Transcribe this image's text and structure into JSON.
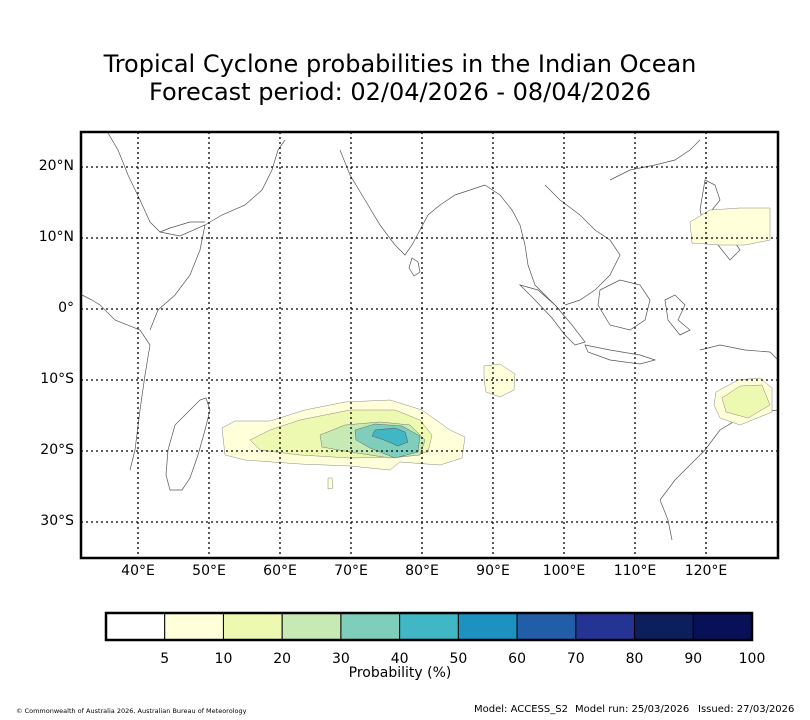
{
  "title": {
    "line1": "Tropical Cyclone probabilities in the Indian Ocean",
    "line2": "Forecast period: 02/04/2026 - 08/04/2026"
  },
  "map": {
    "lat_labels": [
      "20°N",
      "10°N",
      "0°",
      "10°S",
      "20°S",
      "30°S"
    ],
    "lon_labels": [
      "40°E",
      "50°E",
      "60°E",
      "70°E",
      "80°E",
      "90°E",
      "100°E",
      "110°E",
      "120°E"
    ],
    "gridline_style": "dotted"
  },
  "colorbar": {
    "title": "Probability (%)",
    "ticks": [
      "5",
      "10",
      "20",
      "30",
      "40",
      "50",
      "60",
      "70",
      "80",
      "90",
      "100"
    ],
    "colors": [
      "#ffffff",
      "#ffffd9",
      "#edf8b1",
      "#c7e9b4",
      "#7fcdbb",
      "#41b6c4",
      "#1d91c0",
      "#225ea8",
      "#253494",
      "#0c1f5c",
      "#081058"
    ]
  },
  "footer": {
    "copyright": "© Commonwealth of Australia 2026, Australian Bureau of Meteorology",
    "model": "Model: ACCESS_S2",
    "model_run": "Model run: 25/03/2026",
    "issued": "Issued: 27/03/2026"
  }
}
